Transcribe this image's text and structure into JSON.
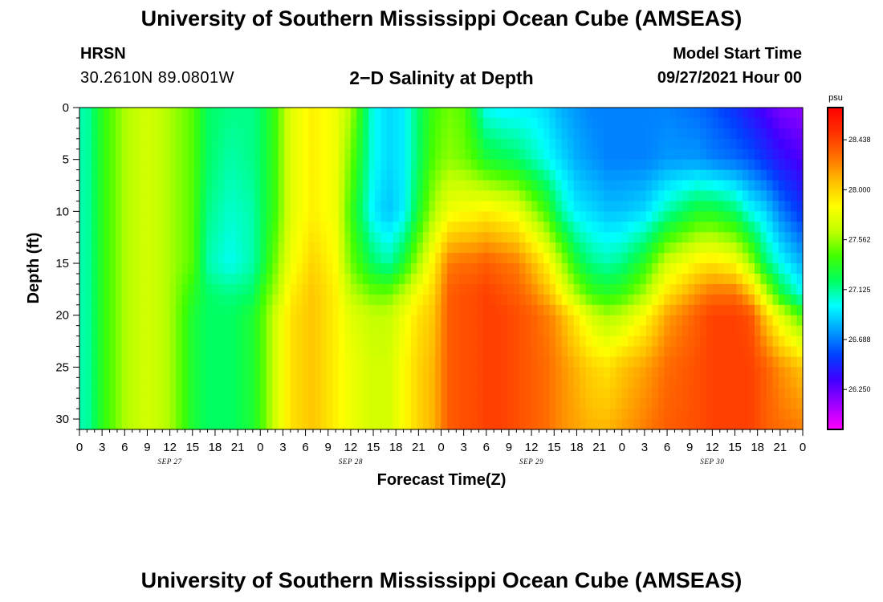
{
  "header": {
    "title": "University of Southern Mississippi Ocean Cube (AMSEAS)",
    "station_name": "HRSN",
    "coordinates": "30.2610N  89.0801W",
    "plot_title": "2−D Salinity at Depth",
    "model_start_label": "Model Start Time",
    "model_start_value": "09/27/2021 Hour 00"
  },
  "footer": {
    "title": "University of Southern Mississippi Ocean Cube (AMSEAS)"
  },
  "chart_data": {
    "type": "heatmap",
    "title": "2−D Salinity at Depth",
    "xlabel": "Forecast Time(Z)",
    "ylabel": "Depth (ft)",
    "x_tick_labels": [
      "0",
      "3",
      "6",
      "9",
      "12",
      "15",
      "18",
      "21",
      "0",
      "3",
      "6",
      "9",
      "12",
      "15",
      "18",
      "21",
      "0",
      "3",
      "6",
      "9",
      "12",
      "15",
      "18",
      "21",
      "0",
      "3",
      "6",
      "9",
      "12",
      "15",
      "18",
      "21",
      "0"
    ],
    "x_date_labels": [
      "SEP 27",
      "SEP 28",
      "SEP 29",
      "SEP 30"
    ],
    "x_hours_range": [
      0,
      96
    ],
    "y_ticks": [
      0,
      5,
      10,
      15,
      20,
      25,
      30
    ],
    "ylim": [
      0,
      31
    ],
    "y_inverted": true,
    "colorbar": {
      "unit": "psu",
      "range": [
        25.9,
        28.72
      ],
      "tick_labels": [
        "28.438",
        "28.000",
        "27.562",
        "27.125",
        "26.688",
        "26.250"
      ],
      "colors": [
        "#ff00ff",
        "#a000ff",
        "#4000ff",
        "#0040ff",
        "#00a0ff",
        "#00ffff",
        "#00ff60",
        "#40ff00",
        "#c0ff00",
        "#ffff00",
        "#ffc000",
        "#ff7000",
        "#ff3000",
        "#ff0000"
      ]
    },
    "salinity_profiles": {
      "depths_ft": [
        0,
        5,
        10,
        15,
        18,
        20,
        25,
        31
      ],
      "times_h": [
        0,
        1,
        3,
        6,
        9,
        12,
        15,
        17,
        20,
        23,
        24,
        26,
        28,
        31,
        34,
        36,
        39,
        41,
        43,
        45,
        47,
        49,
        51,
        52,
        54,
        56,
        58,
        60,
        62,
        63,
        64,
        66,
        68,
        70,
        72,
        75,
        78,
        82,
        84,
        87,
        89,
        91,
        93,
        96
      ],
      "values": [
        [
          27.1,
          27.1,
          27.1,
          27.1,
          27.1,
          27.1,
          27.1,
          27.1
        ],
        [
          27.1,
          27.1,
          27.1,
          27.1,
          27.1,
          27.1,
          27.1,
          27.1
        ],
        [
          27.35,
          27.35,
          27.35,
          27.35,
          27.35,
          27.35,
          27.35,
          27.35
        ],
        [
          27.6,
          27.6,
          27.6,
          27.6,
          27.6,
          27.6,
          27.6,
          27.6
        ],
        [
          27.7,
          27.7,
          27.7,
          27.7,
          27.7,
          27.7,
          27.7,
          27.7
        ],
        [
          27.6,
          27.6,
          27.6,
          27.6,
          27.6,
          27.6,
          27.6,
          27.6
        ],
        [
          27.45,
          27.45,
          27.45,
          27.45,
          27.35,
          27.3,
          27.3,
          27.3
        ],
        [
          27.2,
          27.2,
          27.15,
          27.1,
          27.2,
          27.2,
          27.2,
          27.2
        ],
        [
          27.15,
          27.1,
          27.05,
          27.0,
          27.15,
          27.2,
          27.2,
          27.2
        ],
        [
          27.15,
          27.15,
          27.1,
          27.1,
          27.2,
          27.3,
          27.3,
          27.3
        ],
        [
          27.2,
          27.2,
          27.2,
          27.2,
          27.35,
          27.4,
          27.4,
          27.4
        ],
        [
          27.4,
          27.4,
          27.4,
          27.5,
          27.6,
          27.7,
          27.7,
          27.7
        ],
        [
          27.75,
          27.75,
          27.75,
          27.8,
          27.9,
          27.95,
          27.95,
          27.95
        ],
        [
          27.9,
          27.9,
          27.9,
          28.0,
          28.05,
          28.05,
          28.05,
          28.05
        ],
        [
          27.8,
          27.8,
          27.8,
          27.85,
          27.9,
          27.9,
          27.9,
          27.9
        ],
        [
          27.6,
          27.5,
          27.4,
          27.5,
          27.65,
          27.75,
          27.8,
          27.8
        ],
        [
          27.0,
          27.0,
          26.95,
          27.2,
          27.5,
          27.65,
          27.7,
          27.7
        ],
        [
          26.9,
          26.9,
          26.85,
          27.1,
          27.5,
          27.65,
          27.7,
          27.7
        ],
        [
          26.95,
          26.95,
          26.95,
          27.3,
          27.65,
          27.8,
          27.85,
          27.85
        ],
        [
          27.2,
          27.2,
          27.3,
          27.6,
          27.85,
          27.95,
          28.0,
          28.0
        ],
        [
          27.4,
          27.45,
          27.6,
          27.9,
          28.0,
          28.05,
          28.1,
          28.1
        ],
        [
          27.5,
          27.55,
          27.8,
          28.25,
          28.35,
          28.35,
          28.35,
          28.35
        ],
        [
          27.45,
          27.5,
          27.85,
          28.3,
          28.4,
          28.4,
          28.4,
          28.4
        ],
        [
          27.3,
          27.45,
          27.85,
          28.3,
          28.4,
          28.4,
          28.4,
          28.4
        ],
        [
          27.0,
          27.3,
          27.9,
          28.35,
          28.45,
          28.45,
          28.45,
          28.45
        ],
        [
          26.95,
          27.25,
          27.85,
          28.3,
          28.4,
          28.45,
          28.45,
          28.45
        ],
        [
          26.95,
          27.2,
          27.8,
          28.25,
          28.35,
          28.4,
          28.4,
          28.4
        ],
        [
          26.95,
          27.1,
          27.6,
          28.1,
          28.25,
          28.35,
          28.35,
          28.35
        ],
        [
          26.9,
          27.0,
          27.4,
          27.9,
          28.1,
          28.25,
          28.3,
          28.3
        ],
        [
          26.85,
          26.95,
          27.25,
          27.75,
          28.0,
          28.2,
          28.25,
          28.25
        ],
        [
          26.8,
          26.9,
          27.1,
          27.6,
          27.85,
          28.1,
          28.2,
          28.2
        ],
        [
          26.75,
          26.8,
          26.95,
          27.3,
          27.6,
          27.9,
          28.1,
          28.15
        ],
        [
          26.7,
          26.75,
          26.9,
          27.15,
          27.4,
          27.7,
          28.0,
          28.1
        ],
        [
          26.7,
          26.7,
          26.85,
          27.1,
          27.35,
          27.6,
          27.95,
          28.1
        ],
        [
          26.7,
          26.7,
          26.85,
          27.15,
          27.4,
          27.65,
          28.05,
          28.15
        ],
        [
          26.7,
          26.7,
          26.9,
          27.35,
          27.6,
          27.85,
          28.15,
          28.25
        ],
        [
          26.7,
          26.75,
          27.1,
          27.7,
          27.95,
          28.15,
          28.3,
          28.35
        ],
        [
          26.65,
          26.75,
          27.3,
          27.9,
          28.2,
          28.35,
          28.4,
          28.4
        ],
        [
          26.6,
          26.7,
          27.3,
          27.95,
          28.3,
          28.45,
          28.45,
          28.45
        ],
        [
          26.5,
          26.65,
          27.2,
          27.85,
          28.3,
          28.45,
          28.45,
          28.45
        ],
        [
          26.4,
          26.6,
          27.0,
          27.6,
          28.1,
          28.4,
          28.45,
          28.45
        ],
        [
          26.3,
          26.5,
          26.9,
          27.2,
          27.7,
          28.05,
          28.35,
          28.35
        ],
        [
          26.2,
          26.4,
          26.7,
          27.0,
          27.3,
          27.75,
          28.2,
          28.3
        ],
        [
          26.15,
          26.3,
          26.5,
          26.8,
          27.0,
          27.4,
          28.05,
          28.25
        ]
      ]
    }
  }
}
